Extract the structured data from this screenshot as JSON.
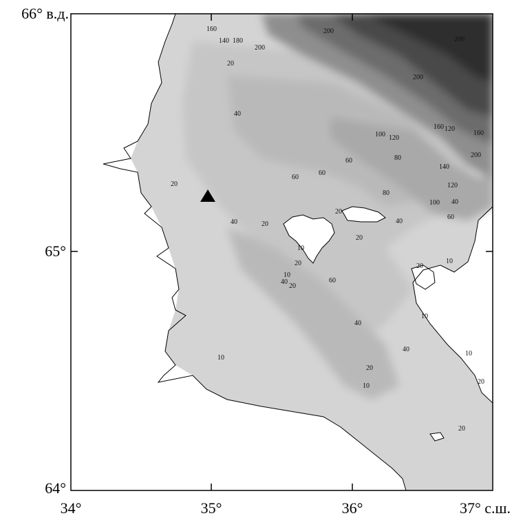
{
  "axes": {
    "y_ticks": [
      {
        "label": "66° в.д."
      },
      {
        "label": "65°"
      },
      {
        "label": "64°"
      }
    ],
    "x_ticks": [
      {
        "label": "34°"
      },
      {
        "label": "35°"
      },
      {
        "label": "36°"
      },
      {
        "label": "37° с.ш."
      }
    ]
  },
  "marker": {
    "shape": "triangle",
    "color": "#000000"
  },
  "depth_colors": [
    "#d9d9d9",
    "#cccccc",
    "#bdbdbd",
    "#a8a8a8",
    "#8c8c8c",
    "#6f6f6f",
    "#505050",
    "#333333"
  ],
  "contour_labels": [
    {
      "text": "40"
    },
    {
      "text": "20"
    },
    {
      "text": "40"
    },
    {
      "text": "20"
    },
    {
      "text": "60"
    },
    {
      "text": "60"
    },
    {
      "text": "60"
    },
    {
      "text": "100"
    },
    {
      "text": "120"
    },
    {
      "text": "80"
    },
    {
      "text": "80"
    },
    {
      "text": "140"
    },
    {
      "text": "120"
    },
    {
      "text": "100"
    },
    {
      "text": "40"
    },
    {
      "text": "60"
    },
    {
      "text": "20"
    },
    {
      "text": "40"
    },
    {
      "text": "20"
    },
    {
      "text": "10"
    },
    {
      "text": "20"
    },
    {
      "text": "10"
    },
    {
      "text": "40"
    },
    {
      "text": "20"
    },
    {
      "text": "60"
    },
    {
      "text": "40"
    },
    {
      "text": "40"
    },
    {
      "text": "10"
    },
    {
      "text": "20"
    },
    {
      "text": "10"
    },
    {
      "text": "20"
    },
    {
      "text": "10"
    },
    {
      "text": "10"
    },
    {
      "text": "10"
    },
    {
      "text": "20"
    },
    {
      "text": "20"
    },
    {
      "text": "200"
    },
    {
      "text": "200"
    },
    {
      "text": "200"
    },
    {
      "text": "160"
    },
    {
      "text": "140"
    },
    {
      "text": "180"
    },
    {
      "text": "200"
    },
    {
      "text": "20"
    },
    {
      "text": "160"
    },
    {
      "text": "120"
    },
    {
      "text": "160"
    },
    {
      "text": "200"
    }
  ]
}
